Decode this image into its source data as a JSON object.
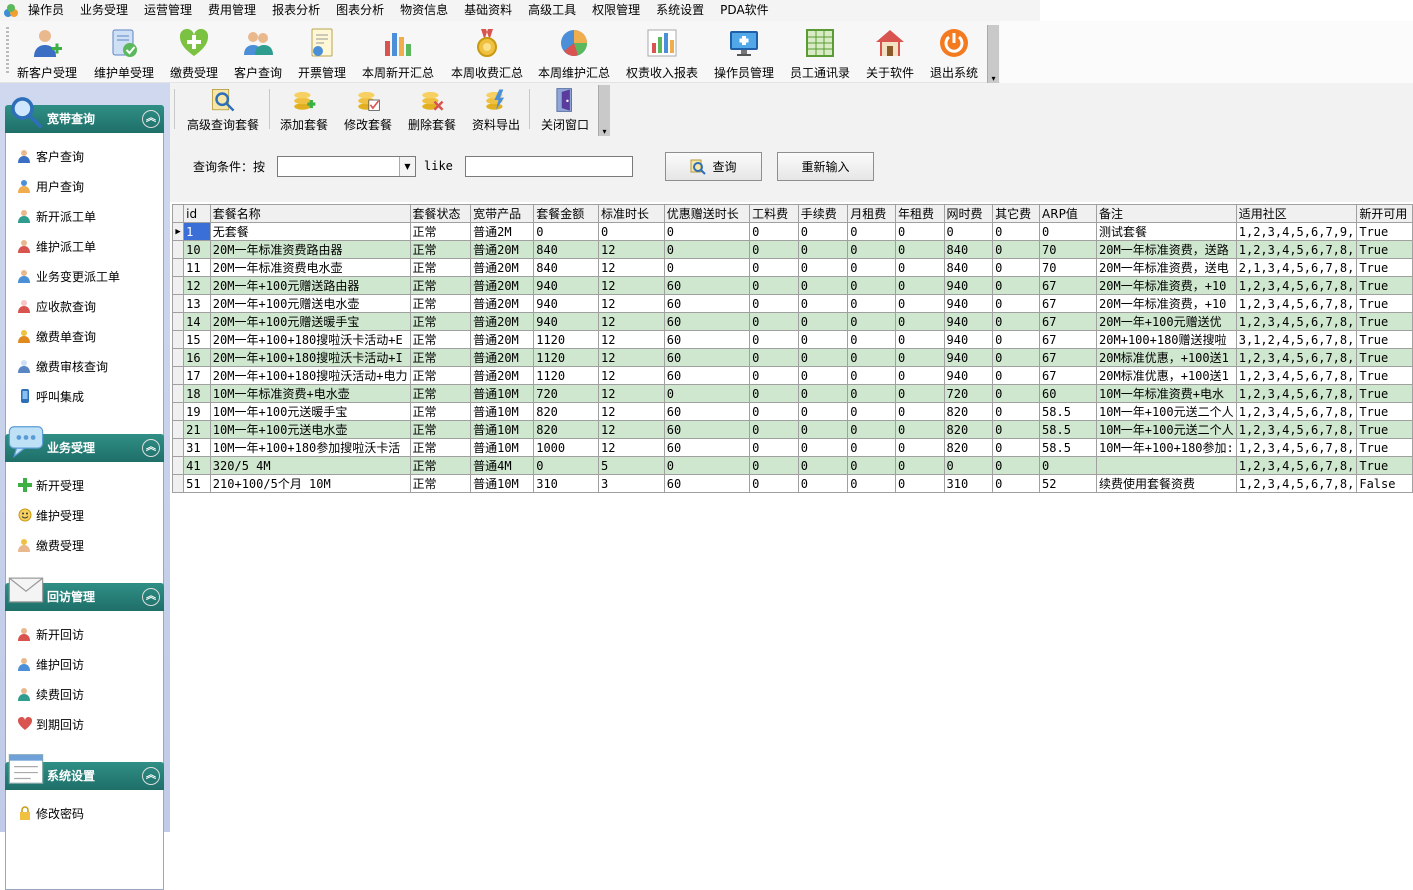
{
  "menu": [
    "操作员",
    "业务受理",
    "运营管理",
    "费用管理",
    "报表分析",
    "图表分析",
    "物资信息",
    "基础资料",
    "高级工具",
    "权限管理",
    "系统设置",
    "PDA软件"
  ],
  "toolbar": [
    {
      "label": "新客户受理",
      "icon": "new-customer-icon"
    },
    {
      "label": "维护单受理",
      "icon": "maintenance-order-icon"
    },
    {
      "label": "缴费受理",
      "icon": "payment-plus-icon"
    },
    {
      "label": "客户查询",
      "icon": "customer-search-icon"
    },
    {
      "label": "开票管理",
      "icon": "invoice-icon"
    },
    {
      "label": "本周新开汇总",
      "icon": "bar-chart-icon"
    },
    {
      "label": "本周收费汇总",
      "icon": "medal-icon"
    },
    {
      "label": "本周维护汇总",
      "icon": "pie-chart-icon"
    },
    {
      "label": "权责收入报表",
      "icon": "report-chart-icon"
    },
    {
      "label": "操作员管理",
      "icon": "monitor-icon"
    },
    {
      "label": "员工通讯录",
      "icon": "spreadsheet-icon"
    },
    {
      "label": "关于软件",
      "icon": "home-icon"
    },
    {
      "label": "退出系统",
      "icon": "power-icon"
    }
  ],
  "sidebar": {
    "panels": [
      {
        "title": "宽带查询",
        "items": [
          "客户查询",
          "用户查询",
          "新开派工单",
          "维护派工单",
          "业务变更派工单",
          "应收款查询",
          "缴费单查询",
          "缴费审核查询",
          "呼叫集成"
        ]
      },
      {
        "title": "业务受理",
        "items": [
          "新开受理",
          "维护受理",
          "缴费受理"
        ]
      },
      {
        "title": "回访管理",
        "items": [
          "新开回访",
          "维护回访",
          "续费回访",
          "到期回访"
        ]
      },
      {
        "title": "系统设置",
        "items": [
          "修改密码"
        ]
      }
    ]
  },
  "subtoolbar": [
    {
      "label": "高级查询套餐",
      "icon": "advanced-search-icon"
    },
    {
      "label": "添加套餐",
      "icon": "add-package-icon"
    },
    {
      "label": "修改套餐",
      "icon": "edit-package-icon"
    },
    {
      "label": "删除套餐",
      "icon": "delete-package-icon"
    },
    {
      "label": "资料导出",
      "icon": "export-icon"
    },
    {
      "label": "关闭窗口",
      "icon": "close-window-icon"
    }
  ],
  "query": {
    "label": "查询条件：按",
    "field_value": "",
    "operator": "like",
    "text_value": "",
    "query_button": "查询",
    "reset_button": "重新输入"
  },
  "table": {
    "columns": [
      "id",
      "套餐名称",
      "套餐状态",
      "宽带产品",
      "套餐金额",
      "标准时长",
      "优惠赠送时长",
      "工料费",
      "手续费",
      "月租费",
      "年租费",
      "网时费",
      "其它费",
      "ARP值",
      "备注",
      "适用社区",
      "新开可用"
    ],
    "rows": [
      [
        "1",
        "无套餐",
        "正常",
        "普通2M",
        "0",
        "0",
        "0",
        "0",
        "0",
        "0",
        "0",
        "0",
        "0",
        "0",
        "测试套餐",
        "1,2,3,4,5,6,7,9,",
        "True"
      ],
      [
        "10",
        "20M一年标准资费路由器",
        "正常",
        "普通20M",
        "840",
        "12",
        "0",
        "0",
        "0",
        "0",
        "0",
        "840",
        "0",
        "70",
        "20M一年标准资费，送路",
        "1,2,3,4,5,6,7,8,",
        "True"
      ],
      [
        "11",
        "20M一年标准资费电水壶",
        "正常",
        "普通20M",
        "840",
        "12",
        "0",
        "0",
        "0",
        "0",
        "0",
        "840",
        "0",
        "70",
        "20M一年标准资费，送电",
        "2,1,3,4,5,6,7,8,",
        "True"
      ],
      [
        "12",
        "20M一年+100元赠送路由器",
        "正常",
        "普通20M",
        "940",
        "12",
        "60",
        "0",
        "0",
        "0",
        "0",
        "940",
        "0",
        "67",
        "20M一年标准资费，+10",
        "1,2,3,4,5,6,7,8,",
        "True"
      ],
      [
        "13",
        "20M一年+100元赠送电水壶",
        "正常",
        "普通20M",
        "940",
        "12",
        "60",
        "0",
        "0",
        "0",
        "0",
        "940",
        "0",
        "67",
        "20M一年标准资费，+10",
        "1,2,3,4,5,6,7,8,",
        "True"
      ],
      [
        "14",
        "20M一年+100元赠送暖手宝",
        "正常",
        "普通20M",
        "940",
        "12",
        "60",
        "0",
        "0",
        "0",
        "0",
        "940",
        "0",
        "67",
        "20M一年+100元赠送优",
        "1,2,3,4,5,6,7,8,",
        "True"
      ],
      [
        "15",
        "20M一年+100+180搜啦沃卡活动+E",
        "正常",
        "普通20M",
        "1120",
        "12",
        "60",
        "0",
        "0",
        "0",
        "0",
        "940",
        "0",
        "67",
        "20M+100+180赠送搜啦",
        "3,1,2,4,5,6,7,8,",
        "True"
      ],
      [
        "16",
        "20M一年+100+180搜啦沃卡活动+I",
        "正常",
        "普通20M",
        "1120",
        "12",
        "60",
        "0",
        "0",
        "0",
        "0",
        "940",
        "0",
        "67",
        "20M标准优惠，+100送1",
        "1,2,3,4,5,6,7,8,",
        "True"
      ],
      [
        "17",
        "20M一年+100+180搜啦沃活动+电力",
        "正常",
        "普通20M",
        "1120",
        "12",
        "60",
        "0",
        "0",
        "0",
        "0",
        "940",
        "0",
        "67",
        "20M标准优惠，+100送1",
        "1,2,3,4,5,6,7,8,",
        "True"
      ],
      [
        "18",
        "10M一年标准资费+电水壶",
        "正常",
        "普通10M",
        "720",
        "12",
        "0",
        "0",
        "0",
        "0",
        "0",
        "720",
        "0",
        "60",
        "10M一年标准资费+电水",
        "1,2,3,4,5,6,7,8,",
        "True"
      ],
      [
        "19",
        "10M一年+100元送暖手宝",
        "正常",
        "普通10M",
        "820",
        "12",
        "60",
        "0",
        "0",
        "0",
        "0",
        "820",
        "0",
        "58.5",
        "10M一年+100元送二个人",
        "1,2,3,4,5,6,7,8,",
        "True"
      ],
      [
        "21",
        "10M一年+100元送电水壶",
        "正常",
        "普通10M",
        "820",
        "12",
        "60",
        "0",
        "0",
        "0",
        "0",
        "820",
        "0",
        "58.5",
        "10M一年+100元送二个人",
        "1,2,3,4,5,6,7,8,",
        "True"
      ],
      [
        "31",
        "10M一年+100+180参加搜啦沃卡活",
        "正常",
        "普通10M",
        "1000",
        "12",
        "60",
        "0",
        "0",
        "0",
        "0",
        "820",
        "0",
        "58.5",
        "10M一年+100+180参加:",
        "1,2,3,4,5,6,7,8,",
        "True"
      ],
      [
        "41",
        "320/5 4M",
        "正常",
        "普通4M",
        "0",
        "5",
        "0",
        "0",
        "0",
        "0",
        "0",
        "0",
        "0",
        "0",
        "",
        "1,2,3,4,5,6,7,8,",
        "True"
      ],
      [
        "51",
        "210+100/5个月 10M",
        "正常",
        "普通10M",
        "310",
        "3",
        "60",
        "0",
        "0",
        "0",
        "0",
        "310",
        "0",
        "52",
        "续费使用套餐资费",
        "1,2,3,4,5,6,7,8,",
        "False"
      ]
    ]
  }
}
